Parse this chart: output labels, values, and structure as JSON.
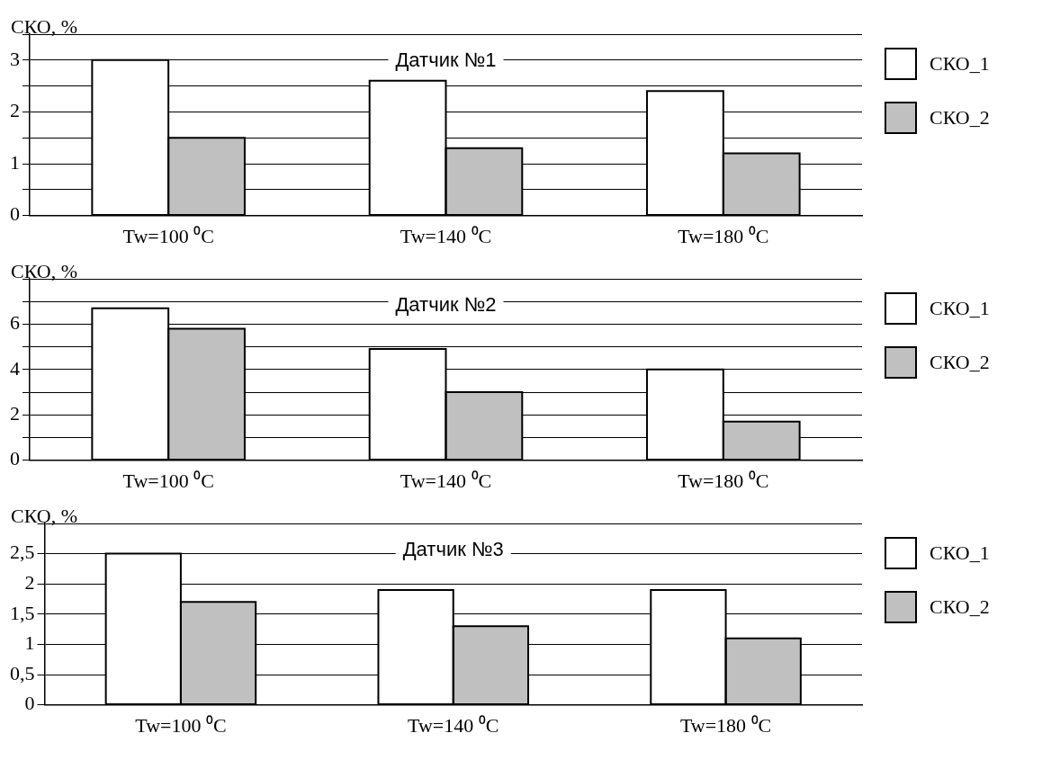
{
  "chart_data": [
    {
      "type": "bar",
      "title": "Датчик №1",
      "ylabel": "СКО, %",
      "categories": [
        "Tw=100 ⁰C",
        "Tw=140 ⁰C",
        "Tw=180 ⁰C"
      ],
      "series": [
        {
          "name": "СКО_1",
          "color": "#ffffff",
          "values": [
            3.0,
            2.6,
            2.4
          ]
        },
        {
          "name": "СКО_2",
          "color": "#c0c0c0",
          "values": [
            1.5,
            1.3,
            1.2
          ]
        }
      ],
      "ylim": [
        0,
        3.5
      ],
      "yticks": [
        0,
        {
          "value": 0.5,
          "label": null
        },
        1,
        {
          "value": 1.5,
          "label": null
        },
        2,
        {
          "value": 2.5,
          "label": null
        },
        3,
        {
          "value": 3.5,
          "label": null
        }
      ],
      "grid": "y",
      "legend": "right"
    },
    {
      "type": "bar",
      "title": "Датчик №2",
      "ylabel": "СКО, %",
      "categories": [
        "Tw=100 ⁰C",
        "Tw=140 ⁰C",
        "Tw=180 ⁰C"
      ],
      "series": [
        {
          "name": "СКО_1",
          "color": "#ffffff",
          "values": [
            6.7,
            4.9,
            4.0
          ]
        },
        {
          "name": "СКО_2",
          "color": "#c0c0c0",
          "values": [
            5.8,
            3.0,
            1.7
          ]
        }
      ],
      "ylim": [
        0,
        8
      ],
      "yticks": [
        0,
        {
          "value": 1,
          "label": null
        },
        2,
        {
          "value": 3,
          "label": null
        },
        4,
        {
          "value": 5,
          "label": null
        },
        6,
        {
          "value": 7,
          "label": null
        },
        {
          "value": 8,
          "label": null
        }
      ],
      "grid": "y",
      "legend": "right"
    },
    {
      "type": "bar",
      "title": "Датчик №3",
      "ylabel": "СКО, %",
      "categories": [
        "Tw=100 ⁰C",
        "Tw=140 ⁰C",
        "Tw=180 ⁰C"
      ],
      "series": [
        {
          "name": "СКО_1",
          "color": "#ffffff",
          "values": [
            2.5,
            1.9,
            1.9
          ]
        },
        {
          "name": "СКО_2",
          "color": "#c0c0c0",
          "values": [
            1.7,
            1.3,
            1.1
          ]
        }
      ],
      "ylim": [
        0,
        3
      ],
      "yticks": [
        0,
        {
          "value": 0.5,
          "label": "0,5"
        },
        1,
        {
          "value": 1.5,
          "label": "1,5"
        },
        2,
        {
          "value": 2.5,
          "label": "2,5"
        },
        {
          "value": 3,
          "label": null
        }
      ],
      "grid": "y",
      "legend": "right"
    }
  ]
}
